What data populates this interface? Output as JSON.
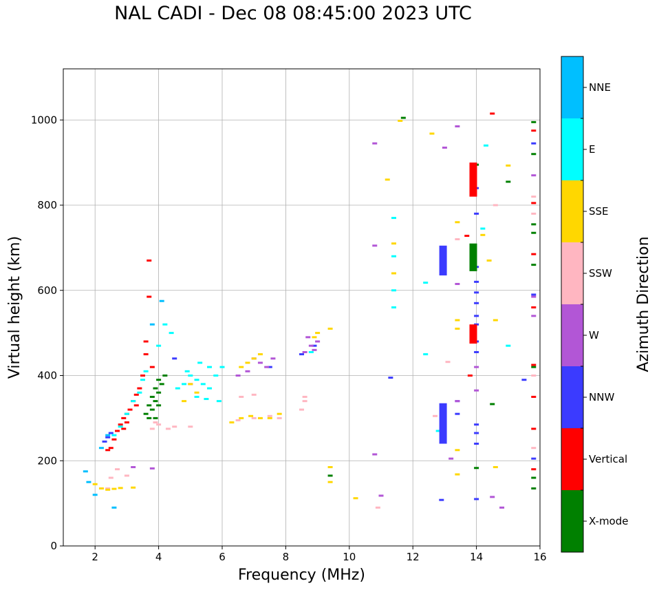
{
  "chart_data": {
    "type": "scatter",
    "title": "NAL CADI - Dec 08 08:45:00 2023 UTC",
    "xlabel": "Frequency (MHz)",
    "ylabel": "Virtual height (km)",
    "xlim": [
      1,
      16
    ],
    "ylim": [
      0,
      1120
    ],
    "xticks": [
      "2",
      "4",
      "6",
      "8",
      "10",
      "12",
      "14",
      "16"
    ],
    "yticks": [
      "0",
      "200",
      "400",
      "600",
      "800",
      "1000"
    ],
    "grid": true,
    "colorbar": {
      "label": "Azimuth Direction",
      "categories": [
        "X-mode",
        "Vertical",
        "NNW",
        "W",
        "SSW",
        "SSE",
        "E",
        "NNE"
      ],
      "colors": [
        "#008000",
        "#ff0000",
        "#3b3bff",
        "#b256d6",
        "#ffb6c1",
        "#ffd700",
        "#00ffff",
        "#00bfff"
      ]
    },
    "series": [
      {
        "name": "X-mode",
        "points": [
          [
            3.7,
            300
          ],
          [
            3.8,
            320
          ],
          [
            3.9,
            340
          ],
          [
            4.0,
            360
          ],
          [
            4.1,
            380
          ],
          [
            3.8,
            350
          ],
          [
            3.9,
            370
          ],
          [
            4.0,
            330
          ],
          [
            4.2,
            400
          ],
          [
            3.6,
            310
          ],
          [
            3.7,
            330
          ],
          [
            4.0,
            390
          ],
          [
            3.9,
            300
          ],
          [
            14.0,
            895
          ],
          [
            15.8,
            995
          ],
          [
            15.8,
            920
          ],
          [
            15.8,
            755
          ],
          [
            15.8,
            735
          ],
          [
            15.8,
            660
          ],
          [
            15.8,
            420
          ],
          [
            15.8,
            160
          ],
          [
            15.8,
            135
          ],
          [
            14.5,
            333
          ],
          [
            15.0,
            855
          ],
          [
            14.0,
            183
          ],
          [
            11.7,
            1005
          ],
          [
            9.4,
            165
          ]
        ]
      },
      {
        "name": "Vertical",
        "points": [
          [
            2.5,
            230
          ],
          [
            2.6,
            250
          ],
          [
            2.7,
            270
          ],
          [
            2.8,
            285
          ],
          [
            2.9,
            300
          ],
          [
            3.0,
            310
          ],
          [
            3.1,
            320
          ],
          [
            3.2,
            340
          ],
          [
            3.3,
            355
          ],
          [
            3.4,
            370
          ],
          [
            3.5,
            400
          ],
          [
            3.6,
            450
          ],
          [
            3.6,
            480
          ],
          [
            3.7,
            585
          ],
          [
            3.7,
            670
          ],
          [
            3.0,
            290
          ],
          [
            2.9,
            275
          ],
          [
            2.4,
            225
          ],
          [
            15.8,
            975
          ],
          [
            15.8,
            805
          ],
          [
            15.8,
            685
          ],
          [
            15.8,
            560
          ],
          [
            15.8,
            425
          ],
          [
            15.8,
            350
          ],
          [
            15.8,
            275
          ],
          [
            15.8,
            180
          ],
          [
            13.8,
            400
          ],
          [
            13.7,
            728
          ],
          [
            14.5,
            1015
          ],
          [
            3.3,
            330
          ],
          [
            3.8,
            420
          ]
        ]
      },
      {
        "name": "NNW",
        "points": [
          [
            2.3,
            245
          ],
          [
            2.4,
            255
          ],
          [
            2.5,
            265
          ],
          [
            4.5,
            440
          ],
          [
            7.5,
            420
          ],
          [
            8.5,
            450
          ],
          [
            8.9,
            470
          ],
          [
            11.3,
            395
          ],
          [
            12.9,
            108
          ],
          [
            14.0,
            110
          ],
          [
            14.0,
            240
          ],
          [
            14.0,
            265
          ],
          [
            14.0,
            285
          ],
          [
            14.0,
            455
          ],
          [
            14.0,
            480
          ],
          [
            14.0,
            520
          ],
          [
            14.0,
            540
          ],
          [
            14.0,
            570
          ],
          [
            14.0,
            595
          ],
          [
            14.0,
            620
          ],
          [
            14.0,
            655
          ],
          [
            14.0,
            780
          ],
          [
            14.0,
            840
          ],
          [
            15.8,
            205
          ],
          [
            15.8,
            590
          ],
          [
            15.8,
            945
          ],
          [
            15.5,
            390
          ],
          [
            13.4,
            340
          ],
          [
            13.4,
            310
          ]
        ]
      },
      {
        "name": "W",
        "points": [
          [
            8.7,
            490
          ],
          [
            8.8,
            470
          ],
          [
            8.9,
            460
          ],
          [
            9.0,
            480
          ],
          [
            8.6,
            455
          ],
          [
            7.0,
            440
          ],
          [
            7.2,
            430
          ],
          [
            7.4,
            420
          ],
          [
            7.6,
            440
          ],
          [
            6.8,
            410
          ],
          [
            3.2,
            185
          ],
          [
            3.8,
            182
          ],
          [
            10.8,
            215
          ],
          [
            11.0,
            118
          ],
          [
            10.8,
            705
          ],
          [
            10.8,
            945
          ],
          [
            13.4,
            340
          ],
          [
            13.4,
            615
          ],
          [
            13.4,
            985
          ],
          [
            13.0,
            935
          ],
          [
            13.2,
            205
          ],
          [
            14.0,
            365
          ],
          [
            14.0,
            420
          ],
          [
            14.8,
            90
          ],
          [
            15.8,
            870
          ],
          [
            15.8,
            585
          ],
          [
            15.8,
            540
          ],
          [
            14.5,
            115
          ],
          [
            6.5,
            400
          ],
          [
            5.0,
            380
          ]
        ]
      },
      {
        "name": "SSW",
        "points": [
          [
            3.8,
            275
          ],
          [
            3.9,
            290
          ],
          [
            4.0,
            285
          ],
          [
            4.3,
            275
          ],
          [
            4.5,
            280
          ],
          [
            5.0,
            280
          ],
          [
            6.5,
            295
          ],
          [
            7.0,
            300
          ],
          [
            7.5,
            305
          ],
          [
            7.8,
            300
          ],
          [
            6.6,
            350
          ],
          [
            7.0,
            355
          ],
          [
            8.6,
            350
          ],
          [
            8.6,
            340
          ],
          [
            2.4,
            135
          ],
          [
            2.5,
            160
          ],
          [
            2.7,
            180
          ],
          [
            3.0,
            165
          ],
          [
            10.9,
            90
          ],
          [
            12.7,
            305
          ],
          [
            13.1,
            432
          ],
          [
            13.4,
            720
          ],
          [
            14.6,
            800
          ],
          [
            15.8,
            780
          ],
          [
            15.8,
            820
          ],
          [
            15.8,
            230
          ],
          [
            15.8,
            400
          ],
          [
            8.5,
            320
          ]
        ]
      },
      {
        "name": "SSE",
        "points": [
          [
            2.2,
            135
          ],
          [
            2.4,
            132
          ],
          [
            2.6,
            134
          ],
          [
            2.8,
            136
          ],
          [
            3.2,
            137
          ],
          [
            2.0,
            145
          ],
          [
            6.3,
            290
          ],
          [
            6.6,
            300
          ],
          [
            6.9,
            305
          ],
          [
            7.2,
            300
          ],
          [
            7.5,
            300
          ],
          [
            7.8,
            310
          ],
          [
            6.6,
            420
          ],
          [
            6.8,
            430
          ],
          [
            7.0,
            440
          ],
          [
            7.2,
            450
          ],
          [
            8.9,
            490
          ],
          [
            9.0,
            500
          ],
          [
            9.4,
            510
          ],
          [
            9.4,
            185
          ],
          [
            9.4,
            150
          ],
          [
            10.2,
            112
          ],
          [
            11.2,
            860
          ],
          [
            11.4,
            640
          ],
          [
            11.4,
            710
          ],
          [
            12.6,
            968
          ],
          [
            13.4,
            168
          ],
          [
            13.4,
            225
          ],
          [
            13.4,
            510
          ],
          [
            13.4,
            530
          ],
          [
            13.4,
            760
          ],
          [
            14.2,
            730
          ],
          [
            14.4,
            670
          ],
          [
            14.6,
            530
          ],
          [
            14.6,
            185
          ],
          [
            15.0,
            893
          ],
          [
            11.6,
            998
          ],
          [
            5.0,
            380
          ],
          [
            5.2,
            360
          ],
          [
            4.8,
            340
          ]
        ]
      },
      {
        "name": "E",
        "points": [
          [
            2.6,
            260
          ],
          [
            2.8,
            280
          ],
          [
            3.0,
            310
          ],
          [
            3.2,
            340
          ],
          [
            3.4,
            360
          ],
          [
            3.5,
            390
          ],
          [
            3.6,
            410
          ],
          [
            4.0,
            470
          ],
          [
            4.2,
            520
          ],
          [
            4.4,
            500
          ],
          [
            4.8,
            380
          ],
          [
            5.0,
            400
          ],
          [
            5.2,
            390
          ],
          [
            5.4,
            380
          ],
          [
            5.6,
            370
          ],
          [
            5.8,
            400
          ],
          [
            6.0,
            420
          ],
          [
            5.2,
            350
          ],
          [
            5.5,
            345
          ],
          [
            5.9,
            340
          ],
          [
            4.6,
            370
          ],
          [
            4.9,
            410
          ],
          [
            5.3,
            430
          ],
          [
            5.6,
            420
          ],
          [
            11.4,
            560
          ],
          [
            11.4,
            600
          ],
          [
            11.4,
            680
          ],
          [
            11.4,
            770
          ],
          [
            12.4,
            450
          ],
          [
            12.4,
            618
          ],
          [
            12.8,
            270
          ],
          [
            14.2,
            745
          ],
          [
            15.0,
            470
          ],
          [
            14.3,
            940
          ],
          [
            8.8,
            455
          ]
        ]
      },
      {
        "name": "NNE",
        "points": [
          [
            1.7,
            175
          ],
          [
            1.8,
            150
          ],
          [
            2.0,
            120
          ],
          [
            2.2,
            230
          ],
          [
            2.4,
            260
          ],
          [
            2.6,
            90
          ],
          [
            4.1,
            575
          ],
          [
            3.8,
            520
          ]
        ]
      }
    ],
    "blocks": [
      {
        "series": "NNW",
        "x": 12.95,
        "y0": 240,
        "y1": 335
      },
      {
        "series": "NNW",
        "x": 12.95,
        "y0": 635,
        "y1": 705
      },
      {
        "series": "Vertical",
        "x": 13.9,
        "y0": 820,
        "y1": 900
      },
      {
        "series": "Vertical",
        "x": 13.9,
        "y0": 475,
        "y1": 520
      },
      {
        "series": "X-mode",
        "x": 13.9,
        "y0": 645,
        "y1": 710
      }
    ]
  }
}
